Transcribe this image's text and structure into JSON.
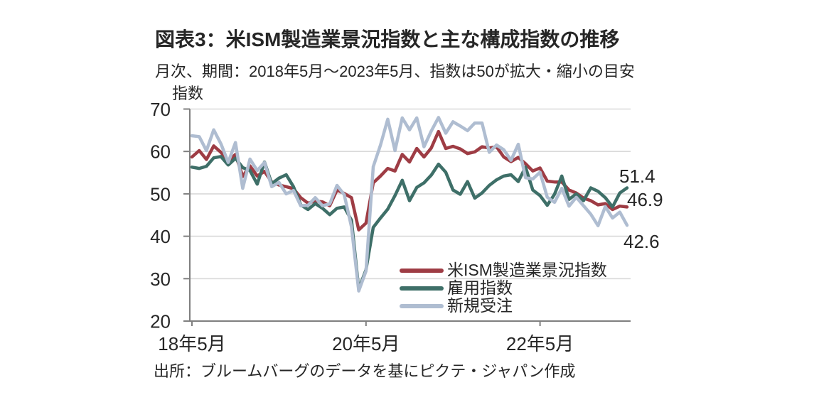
{
  "figure": {
    "title": "図表3：米ISM製造業景況指数と主な構成指数の推移",
    "subtitle": "月次、期間：2018年5月～2023年5月、指数は50が拡大・縮小の目安",
    "source": "出所：ブルームバーグのデータを基にピクテ・ジャパン作成"
  },
  "chart_data": {
    "type": "line",
    "title": "米ISM製造業景況指数と主な構成指数の推移",
    "ylabel": "指数",
    "ylim": [
      20,
      70
    ],
    "yticks": [
      70,
      60,
      50,
      40,
      30,
      20
    ],
    "x_frequency": "monthly",
    "x_start": "2018年5月",
    "x_end": "2023年5月",
    "xticks": [
      {
        "month_index": 0,
        "label": "18年5月"
      },
      {
        "month_index": 24,
        "label": "20年5月"
      },
      {
        "month_index": 48,
        "label": "22年5月"
      }
    ],
    "grid": true,
    "legend_position": "inside-bottom-right",
    "colors": {
      "axis": "#7F7F7F",
      "grid": "#D9D9D9",
      "text": "#262626"
    },
    "end_labels": [
      {
        "text": "51.4",
        "series": "雇用指数"
      },
      {
        "text": "46.9",
        "series": "米ISM製造業景況指数"
      },
      {
        "text": "42.6",
        "series": "新規受注"
      }
    ],
    "series": [
      {
        "name": "米ISM製造業景況指数",
        "key": "ism-manufacturing-pmi",
        "color": "#9E3C44",
        "values": [
          58.7,
          60.2,
          58.1,
          61.3,
          59.8,
          57.7,
          59.3,
          54.1,
          56.6,
          54.2,
          55.3,
          52.8,
          52.1,
          51.7,
          51.2,
          49.1,
          47.8,
          48.3,
          48.1,
          47.2,
          50.9,
          50.1,
          49.1,
          41.5,
          43.1,
          52.6,
          54.2,
          56.0,
          55.4,
          59.3,
          57.5,
          60.7,
          58.7,
          60.8,
          64.7,
          60.7,
          61.2,
          60.6,
          59.5,
          59.9,
          61.1,
          60.8,
          61.1,
          58.7,
          57.6,
          58.6,
          57.1,
          55.4,
          56.1,
          53.0,
          52.8,
          52.8,
          50.9,
          50.2,
          49.0,
          48.4,
          47.4,
          47.7,
          46.3,
          47.1,
          46.9
        ]
      },
      {
        "name": "雇用指数",
        "key": "employment-index",
        "color": "#3E6F68",
        "values": [
          56.3,
          56.0,
          56.5,
          58.5,
          58.8,
          56.8,
          58.4,
          56.2,
          55.5,
          52.3,
          57.5,
          52.4,
          53.7,
          54.5,
          51.7,
          47.4,
          46.3,
          47.7,
          46.6,
          45.1,
          46.6,
          46.9,
          43.8,
          27.5,
          32.1,
          42.1,
          44.3,
          46.4,
          49.6,
          53.2,
          48.4,
          51.5,
          52.6,
          54.4,
          57.0,
          55.1,
          50.9,
          49.9,
          52.9,
          49.0,
          50.2,
          52.0,
          53.3,
          54.2,
          54.5,
          52.9,
          56.3,
          50.9,
          49.6,
          47.3,
          49.9,
          54.2,
          48.7,
          50.0,
          48.4,
          51.4,
          50.6,
          49.1,
          46.9,
          50.2,
          51.4
        ]
      },
      {
        "name": "新規受注",
        "key": "new-orders-index",
        "color": "#AFBDD1",
        "values": [
          63.7,
          63.5,
          60.2,
          65.1,
          61.8,
          57.4,
          62.1,
          51.3,
          58.2,
          55.5,
          57.4,
          51.7,
          52.7,
          50.0,
          50.8,
          47.2,
          47.3,
          49.1,
          47.2,
          47.6,
          52.0,
          49.8,
          42.2,
          27.1,
          31.8,
          56.4,
          61.5,
          67.6,
          60.2,
          67.9,
          65.1,
          67.9,
          61.1,
          64.8,
          68.0,
          64.3,
          67.0,
          66.0,
          64.9,
          66.7,
          66.7,
          59.8,
          61.5,
          60.4,
          57.9,
          61.7,
          53.8,
          53.5,
          55.1,
          49.2,
          48.0,
          51.3,
          47.1,
          49.2,
          47.2,
          45.2,
          42.5,
          47.0,
          44.3,
          45.7,
          42.6
        ]
      }
    ]
  }
}
